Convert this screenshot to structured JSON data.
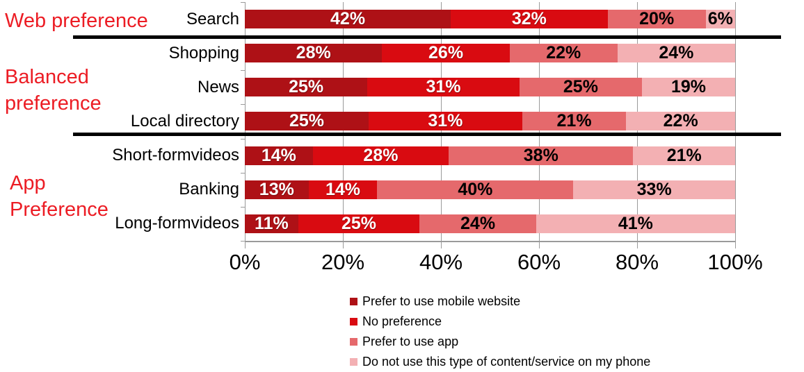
{
  "group_labels": [
    {
      "id": "web-preference",
      "lines": [
        "Web preference"
      ]
    },
    {
      "id": "balanced-preference",
      "lines": [
        "Balanced",
        "preference"
      ]
    },
    {
      "id": "app-preference",
      "lines": [
        "App",
        "Preference"
      ]
    }
  ],
  "chart_data": {
    "type": "bar",
    "stacked": true,
    "orientation": "horizontal",
    "title": "",
    "xlabel": "",
    "ylabel": "",
    "xlim": [
      0,
      100
    ],
    "grid": true,
    "legend_position": "bottom",
    "value_suffix": "%",
    "categories": [
      "Search",
      "Shopping",
      "News",
      "Local directory",
      "Short-form videos",
      "Banking",
      "Long-form videos"
    ],
    "category_label_lines": [
      [
        "Search"
      ],
      [
        "Shopping"
      ],
      [
        "News"
      ],
      [
        "Local directory"
      ],
      [
        "Short-form",
        "videos"
      ],
      [
        "Banking"
      ],
      [
        "Long-form",
        "videos"
      ]
    ],
    "category_groups": [
      "Web preference",
      "Balanced preference",
      "Balanced preference",
      "Balanced preference",
      "App Preference",
      "App Preference",
      "App Preference"
    ],
    "x_ticks": [
      "0%",
      "20%",
      "40%",
      "60%",
      "80%",
      "100%"
    ],
    "series": [
      {
        "name": "Prefer to use mobile website",
        "color": "#AE1116",
        "label_color": "white",
        "values": [
          42,
          28,
          25,
          25,
          14,
          13,
          11
        ]
      },
      {
        "name": "No preference",
        "color": "#D90B11",
        "label_color": "white",
        "values": [
          32,
          26,
          31,
          31,
          28,
          14,
          25
        ]
      },
      {
        "name": "Prefer to use app",
        "color": "#E5696C",
        "label_color": "black",
        "values": [
          20,
          22,
          25,
          21,
          38,
          40,
          24
        ]
      },
      {
        "name": "Do not use this type of content/service on my phone",
        "color": "#F3B0B3",
        "label_color": "black",
        "values": [
          6,
          24,
          19,
          22,
          21,
          33,
          41
        ]
      }
    ]
  },
  "colors": {
    "group_label": "#EC1C24",
    "axis": "#9a9a9a",
    "divider": "#000000"
  }
}
